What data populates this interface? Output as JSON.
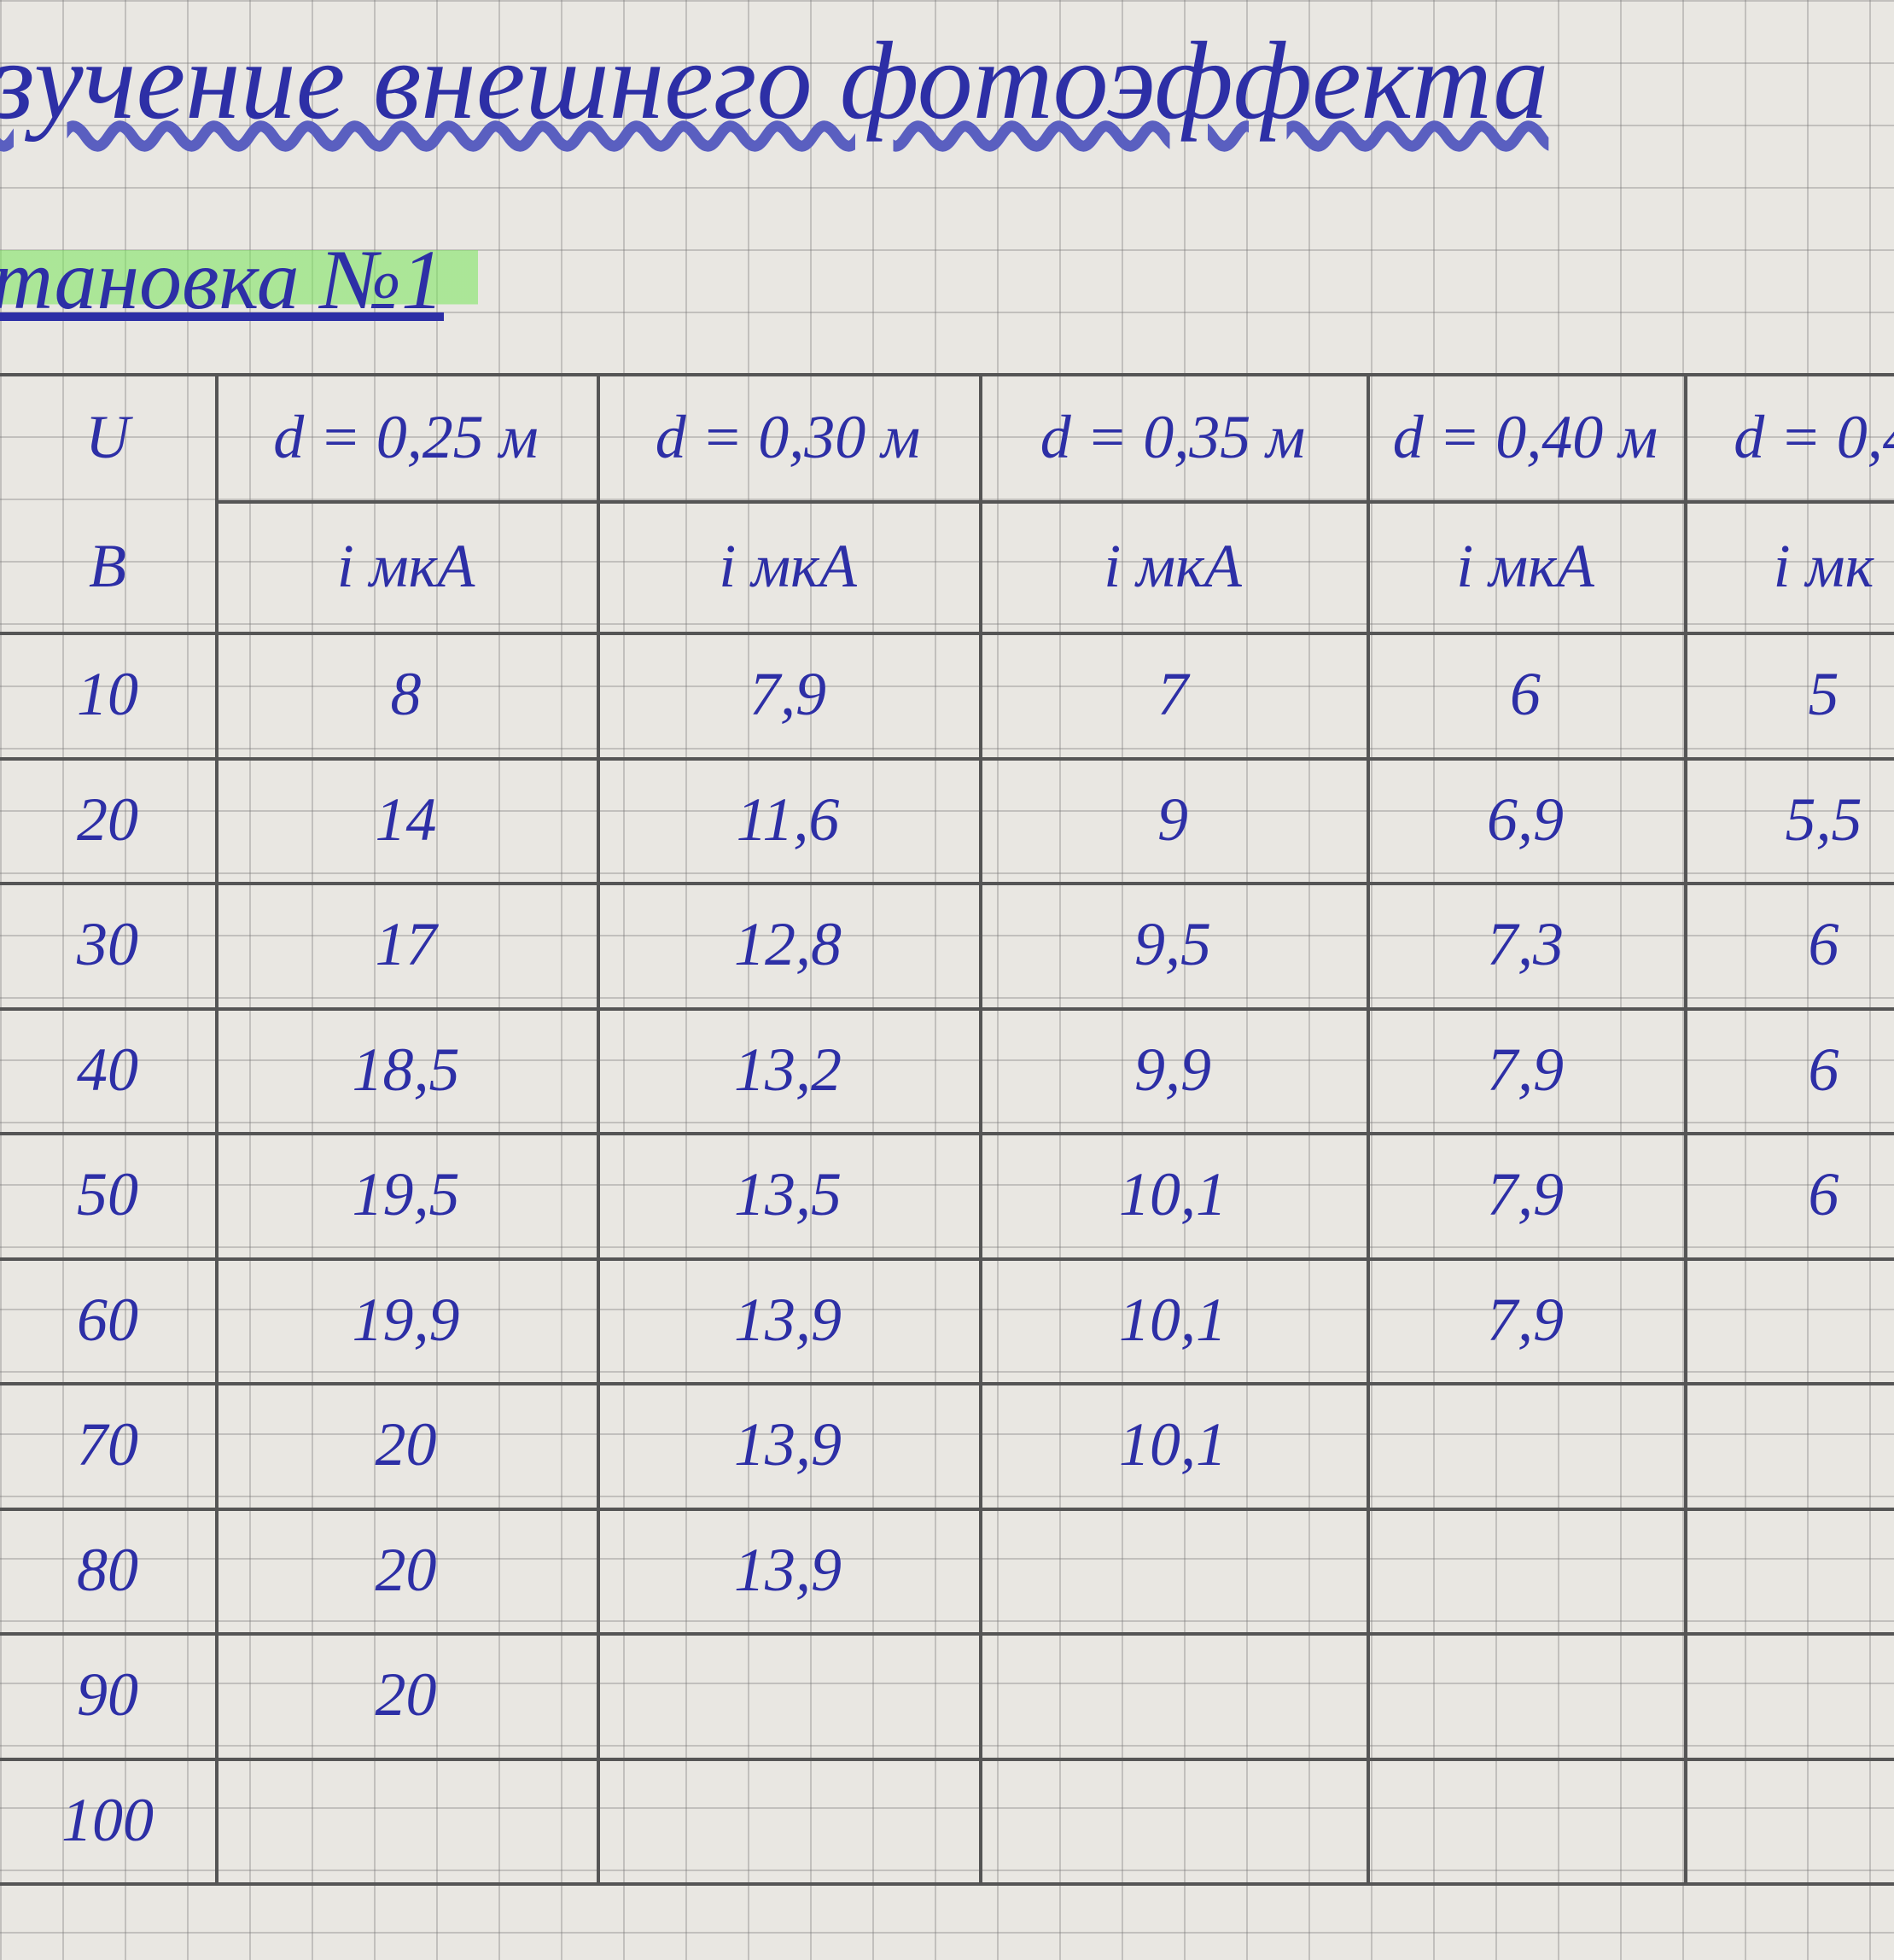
{
  "title": "зучение внешнего фотоэффекта",
  "subtitle": "тановка №1",
  "table": {
    "header": [
      "U",
      "d = 0,25 м",
      "d = 0,30 м",
      "d = 0,35 м",
      "d = 0,40 м",
      "d = 0,4"
    ],
    "units": [
      "В",
      "i мкА",
      "i мкА",
      "i мкА",
      "i мкА",
      "i мк"
    ],
    "rows": [
      [
        "10",
        "8",
        "7,9",
        "7",
        "6",
        "5"
      ],
      [
        "20",
        "14",
        "11,6",
        "9",
        "6,9",
        "5,5"
      ],
      [
        "30",
        "17",
        "12,8",
        "9,5",
        "7,3",
        "6"
      ],
      [
        "40",
        "18,5",
        "13,2",
        "9,9",
        "7,9",
        "6"
      ],
      [
        "50",
        "19,5",
        "13,5",
        "10,1",
        "7,9",
        "6"
      ],
      [
        "60",
        "19,9",
        "13,9",
        "10,1",
        "7,9"
      ],
      [
        "70",
        "20",
        "13,9",
        "10,1"
      ],
      [
        "80",
        "20",
        "13,9"
      ],
      [
        "90",
        "20"
      ],
      [
        "100"
      ]
    ]
  }
}
